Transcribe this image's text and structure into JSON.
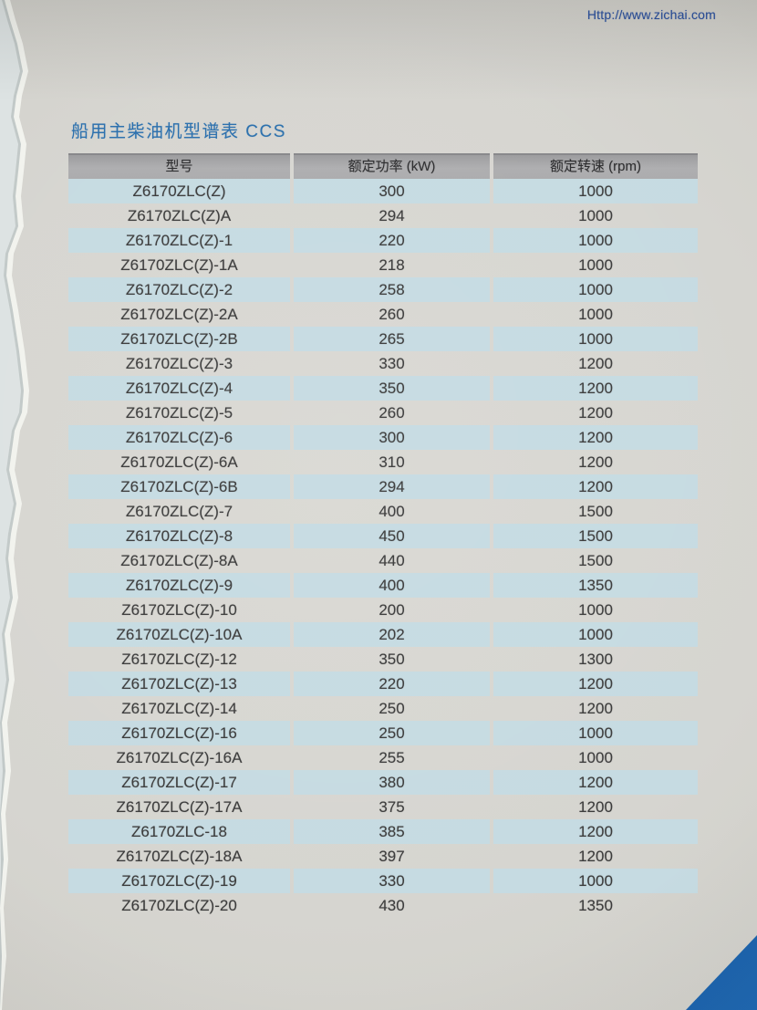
{
  "page": {
    "site_url": "Http://www.zichai.com",
    "title": "船用主柴油机型谱表 CCS"
  },
  "table": {
    "columns": [
      "型号",
      "额定功率 (kW)",
      "额定转速 (rpm)"
    ],
    "rows": [
      [
        "Z6170ZLC(Z)",
        "300",
        "1000"
      ],
      [
        "Z6170ZLC(Z)A",
        "294",
        "1000"
      ],
      [
        "Z6170ZLC(Z)-1",
        "220",
        "1000"
      ],
      [
        "Z6170ZLC(Z)-1A",
        "218",
        "1000"
      ],
      [
        "Z6170ZLC(Z)-2",
        "258",
        "1000"
      ],
      [
        "Z6170ZLC(Z)-2A",
        "260",
        "1000"
      ],
      [
        "Z6170ZLC(Z)-2B",
        "265",
        "1000"
      ],
      [
        "Z6170ZLC(Z)-3",
        "330",
        "1200"
      ],
      [
        "Z6170ZLC(Z)-4",
        "350",
        "1200"
      ],
      [
        "Z6170ZLC(Z)-5",
        "260",
        "1200"
      ],
      [
        "Z6170ZLC(Z)-6",
        "300",
        "1200"
      ],
      [
        "Z6170ZLC(Z)-6A",
        "310",
        "1200"
      ],
      [
        "Z6170ZLC(Z)-6B",
        "294",
        "1200"
      ],
      [
        "Z6170ZLC(Z)-7",
        "400",
        "1500"
      ],
      [
        "Z6170ZLC(Z)-8",
        "450",
        "1500"
      ],
      [
        "Z6170ZLC(Z)-8A",
        "440",
        "1500"
      ],
      [
        "Z6170ZLC(Z)-9",
        "400",
        "1350"
      ],
      [
        "Z6170ZLC(Z)-10",
        "200",
        "1000"
      ],
      [
        "Z6170ZLC(Z)-10A",
        "202",
        "1000"
      ],
      [
        "Z6170ZLC(Z)-12",
        "350",
        "1300"
      ],
      [
        "Z6170ZLC(Z)-13",
        "220",
        "1200"
      ],
      [
        "Z6170ZLC(Z)-14",
        "250",
        "1200"
      ],
      [
        "Z6170ZLC(Z)-16",
        "250",
        "1000"
      ],
      [
        "Z6170ZLC(Z)-16A",
        "255",
        "1000"
      ],
      [
        "Z6170ZLC(Z)-17",
        "380",
        "1200"
      ],
      [
        "Z6170ZLC(Z)-17A",
        "375",
        "1200"
      ],
      [
        "Z6170ZLC-18",
        "385",
        "1200"
      ],
      [
        "Z6170ZLC(Z)-18A",
        "397",
        "1200"
      ],
      [
        "Z6170ZLC(Z)-19",
        "330",
        "1000"
      ],
      [
        "Z6170ZLC(Z)-20",
        "430",
        "1350"
      ]
    ]
  },
  "colors": {
    "row_highlight": "#c6dbe2",
    "header_gray": "#a9a9ab",
    "title_blue": "#2a6fad",
    "url_blue": "#2b519f",
    "corner_triangle_blue": "#1c64ab",
    "paper": "#d4d3cd"
  }
}
